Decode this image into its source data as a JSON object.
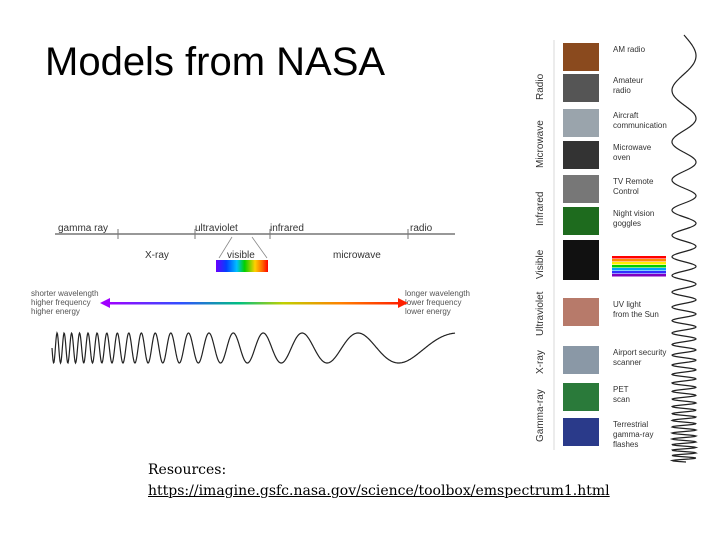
{
  "slide": {
    "title": "Models from NASA",
    "resources_label": "Resources:",
    "resources_link": "https://imagine.gsfc.nasa.gov/science/toolbox/emspectrum1.html"
  },
  "spectrum": {
    "top_labels": [
      "gamma ray",
      "ultraviolet",
      "infrared",
      "radio"
    ],
    "bottom_labels": [
      "X-ray",
      "visible",
      "microwave"
    ],
    "left_text": [
      "shorter wavelength",
      "higher frequency",
      "higher energy"
    ],
    "right_text": [
      "longer wavelength",
      "lower frequency",
      "lower energy"
    ]
  },
  "bands": [
    "Radio",
    "Microwave",
    "Infrared",
    "Visible",
    "Ultraviolet",
    "X-ray",
    "Gamma-ray"
  ],
  "examples": [
    {
      "label": [
        "AM radio"
      ],
      "icon": "radio-icon",
      "color": "#8a4a1e"
    },
    {
      "label": [
        "Amateur",
        "radio"
      ],
      "icon": "ham-radio-icon",
      "color": "#555555"
    },
    {
      "label": [
        "Aircraft",
        "communication"
      ],
      "icon": "aircraft-icon",
      "color": "#9aa4ac"
    },
    {
      "label": [
        "Microwave",
        "oven"
      ],
      "icon": "microwave-oven-icon",
      "color": "#333333"
    },
    {
      "label": [
        "TV Remote",
        "Control"
      ],
      "icon": "remote-control-icon",
      "color": "#777777"
    },
    {
      "label": [
        "Night vision",
        "goggles"
      ],
      "icon": "night-vision-icon",
      "color": "#1e6b1e"
    },
    {
      "label": [],
      "icon": "bulb-icon",
      "color": "#111111"
    },
    {
      "label": [
        "UV light",
        "from the Sun"
      ],
      "icon": "sun-icon",
      "color": "#b77a6a"
    },
    {
      "label": [
        "Airport security",
        "scanner"
      ],
      "icon": "scanner-icon",
      "color": "#8a98a6"
    },
    {
      "label": [
        "PET",
        "scan"
      ],
      "icon": "pet-scan-icon",
      "color": "#2a7a3a"
    },
    {
      "label": [
        "Terrestrial",
        "gamma-ray",
        "flashes"
      ],
      "icon": "lightning-icon",
      "color": "#2a3a8a"
    }
  ]
}
